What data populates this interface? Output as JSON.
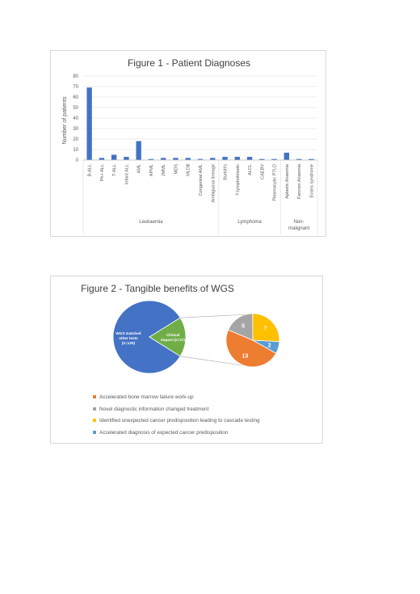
{
  "chart_data": [
    {
      "type": "bar",
      "title": "Figure 1 - Patient Diagnoses",
      "ylabel": "Number of patients",
      "ylim": [
        0,
        80
      ],
      "yticks": [
        0,
        10,
        20,
        30,
        40,
        50,
        60,
        70,
        80
      ],
      "grid": true,
      "bar_color": "#4472c4",
      "categories": [
        "B-ALL",
        "Ph+ ALL",
        "T-ALL",
        "Infant ALL",
        "AML",
        "APML",
        "JMML",
        "MDS",
        "MLD$",
        "Congenital AML",
        "Ambiguous lineage",
        "Burkitt's",
        "T-lymphoblastic",
        "ALCL",
        "CAEBV",
        "Plasmacytic PTLD",
        "Aplastic Anaemia",
        "Fanconi Anaemia",
        "Evans syndrome"
      ],
      "values": [
        69,
        2,
        5,
        3,
        18,
        1,
        2,
        2,
        2,
        1,
        2,
        3,
        3,
        3,
        1,
        1,
        7,
        1,
        1
      ],
      "groups": [
        {
          "label": "Leukaemia",
          "lines": [
            "Leukaemia"
          ],
          "count": 11
        },
        {
          "label": "Lymphoma",
          "lines": [
            "Lymphoma"
          ],
          "count": 5
        },
        {
          "label": "Non-malignant",
          "lines": [
            "Non-",
            "malignant"
          ],
          "count": 3
        }
      ]
    },
    {
      "type": "pie",
      "title": "Figure 2 - Tangible benefits of WGS",
      "main_pie": [
        {
          "label_lines": [
            "WGS matched",
            "other tests",
            "(n=125)"
          ],
          "value": 125,
          "color": "#4472c4"
        },
        {
          "label_lines": [
            "Clinical",
            "impact (n=27)"
          ],
          "value": 27,
          "color": "#70ad47"
        }
      ],
      "sub_pie": [
        {
          "label": "Accelerated bone marrow failure work-up",
          "value": 13,
          "color": "#ed7d31"
        },
        {
          "label": "Novel diagnostic information changed treatment",
          "value": 5,
          "color": "#a5a5a5"
        },
        {
          "label": "Identified unexpected cancer predisposition leading to cascade testing",
          "value": 7,
          "color": "#ffc000"
        },
        {
          "label": "Accelerated diagnosis of expected cancer predisposition",
          "value": 2,
          "color": "#5b9bd5"
        }
      ]
    }
  ]
}
